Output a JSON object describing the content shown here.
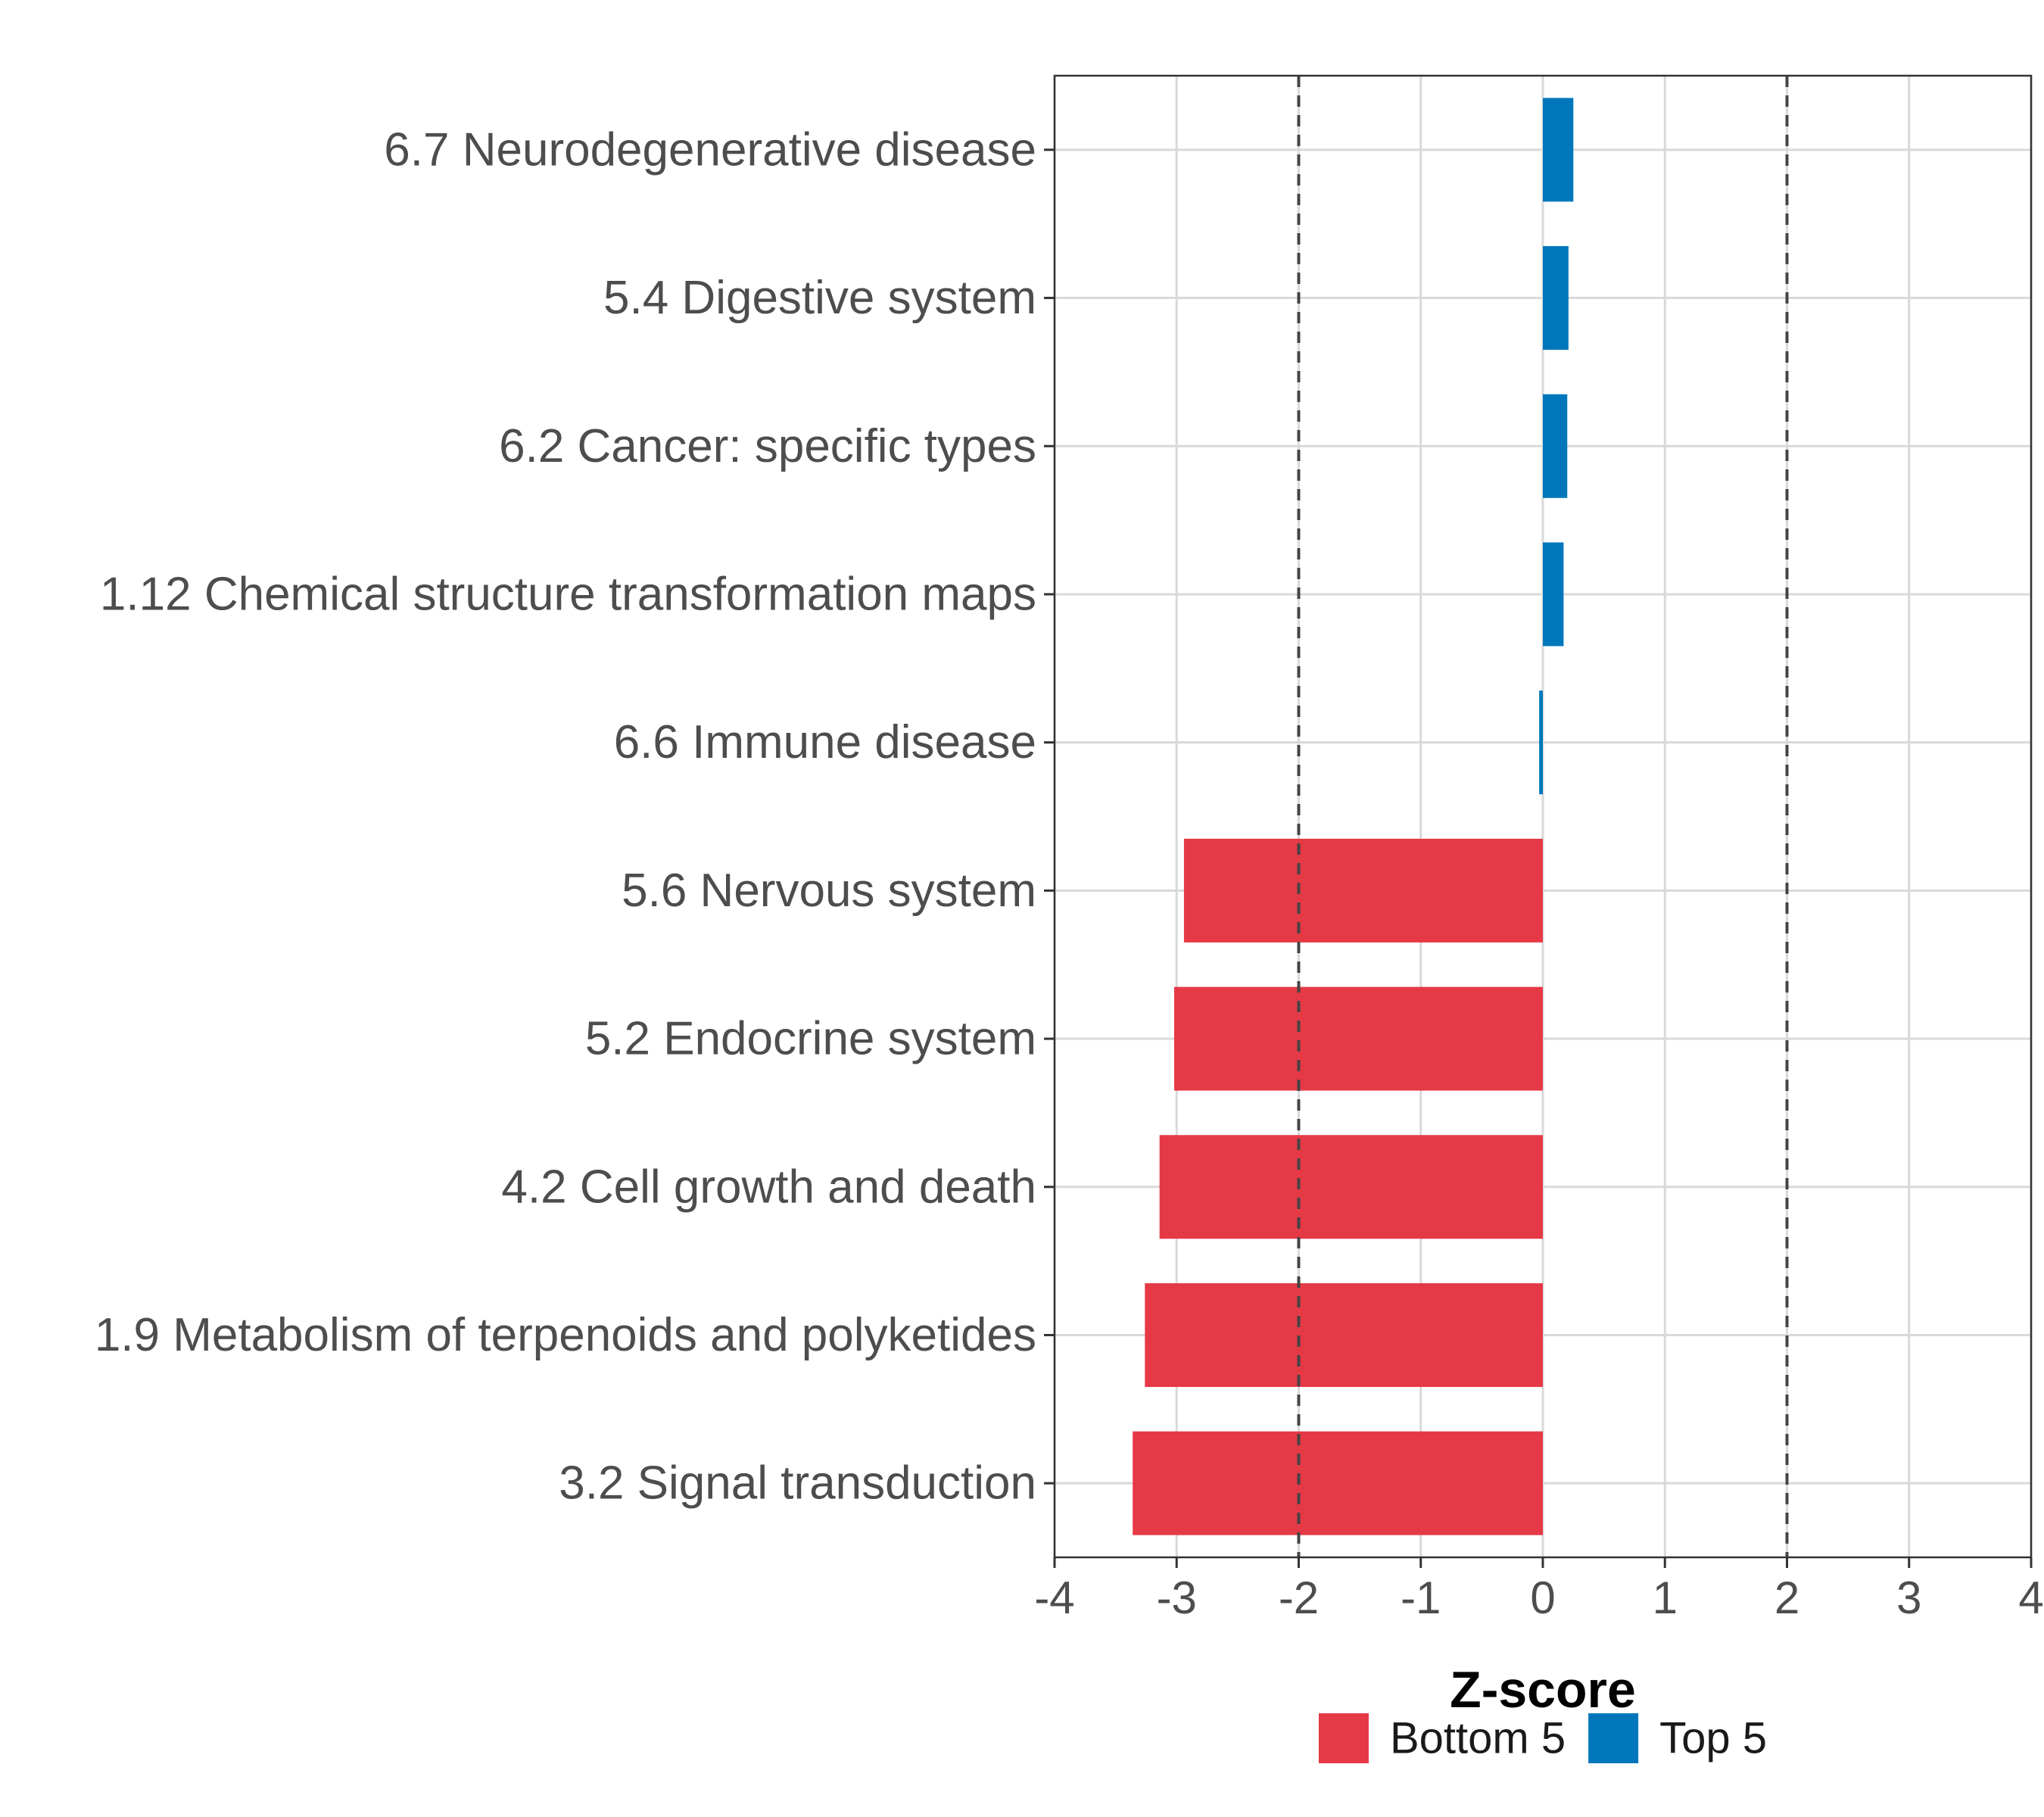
{
  "chart_data": {
    "type": "bar",
    "orientation": "horizontal",
    "xlabel": "Z-score",
    "ylabel": "",
    "xlim": [
      -4,
      4
    ],
    "x_ticks": [
      "-4",
      "-3",
      "-2",
      "-1",
      "0",
      "1",
      "2",
      "3",
      "4"
    ],
    "x_tick_values": [
      -4,
      -3,
      -2,
      -1,
      0,
      1,
      2,
      3,
      4
    ],
    "reference_lines": [
      -2,
      2
    ],
    "grid": true,
    "legend_position": "bottom",
    "categories": [
      "6.7 Neurodegenerative disease",
      "5.4 Digestive system",
      "6.2 Cancer: specific types",
      "1.12 Chemical structure transformation maps",
      "6.6 Immune disease",
      "5.6 Nervous system",
      "5.2 Endocrine system",
      "4.2 Cell growth and death",
      "1.9 Metabolism of terpenoids and polyketides",
      "3.2 Signal transduction"
    ],
    "values": [
      0.25,
      0.21,
      0.2,
      0.17,
      -0.03,
      -2.94,
      -3.02,
      -3.14,
      -3.26,
      -3.36
    ],
    "groups": [
      "Top 5",
      "Top 5",
      "Top 5",
      "Top 5",
      "Top 5",
      "Bottom 5",
      "Bottom 5",
      "Bottom 5",
      "Bottom 5",
      "Bottom 5"
    ],
    "legend": [
      {
        "name": "Bottom 5",
        "color": "#e63946"
      },
      {
        "name": "Top 5",
        "color": "#0077bb"
      }
    ]
  }
}
